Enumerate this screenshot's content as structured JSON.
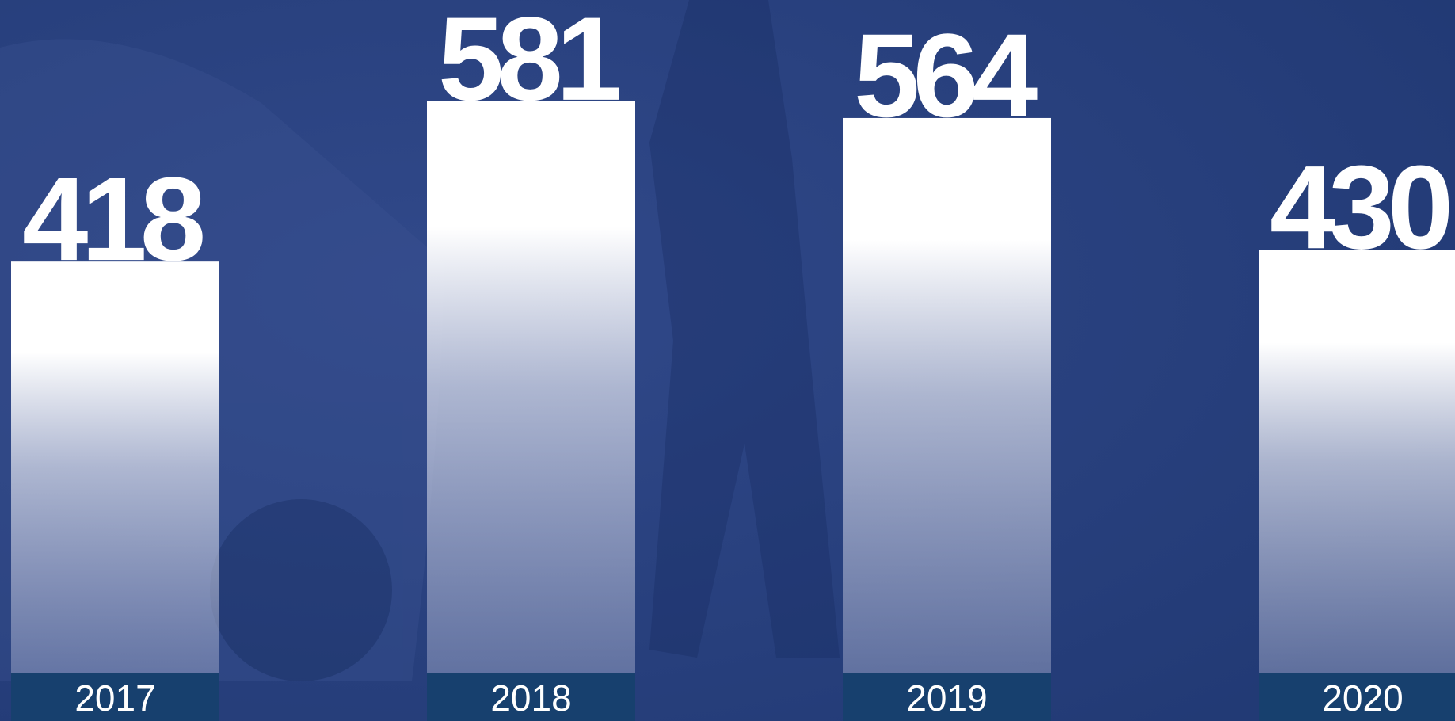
{
  "chart_data": {
    "type": "bar",
    "categories": [
      "2017",
      "2018",
      "2019",
      "2020"
    ],
    "values": [
      418,
      581,
      564,
      430
    ],
    "color": "#ffffff",
    "ylim": [
      0,
      684
    ]
  }
}
